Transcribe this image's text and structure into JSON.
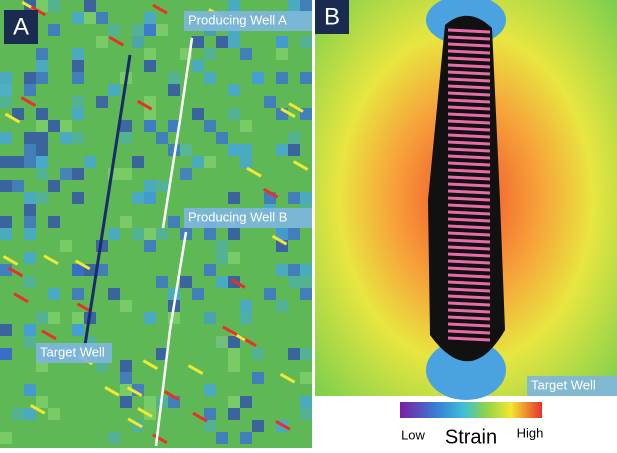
{
  "panels": [
    {
      "label": "A",
      "annotations": [
        "Producing Well A",
        "Producing Well B",
        "Target Well"
      ]
    },
    {
      "label": "B",
      "annotations": [
        "Target Well"
      ]
    }
  ],
  "colorbar": {
    "low": "Low",
    "title": "Strain",
    "high": "High"
  }
}
